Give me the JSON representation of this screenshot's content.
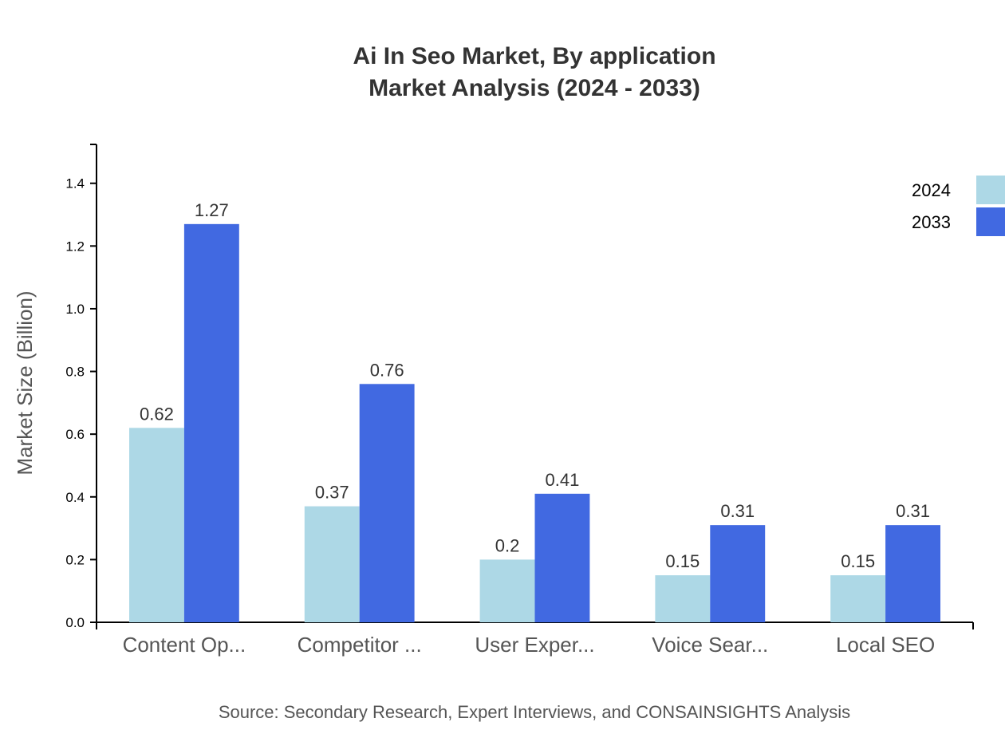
{
  "chart_data": {
    "type": "bar",
    "title": "Ai In Seo Market, By application",
    "subtitle": "Market Analysis (2024 - 2033)",
    "xlabel": "",
    "ylabel": "Market Size (Billion)",
    "ylim": [
      0,
      1.524
    ],
    "yticks": [
      "0.0",
      "0.2",
      "0.4",
      "0.6",
      "0.8",
      "1.0",
      "1.2",
      "1.4"
    ],
    "categories": [
      "Content Op...",
      "Competitor ...",
      "User Exper...",
      "Voice Sear...",
      "Local SEO"
    ],
    "series": [
      {
        "name": "2024",
        "color": "#add8e6",
        "values": [
          0.62,
          0.37,
          0.2,
          0.15,
          0.15
        ],
        "labels": [
          "0.62",
          "0.37",
          "0.2",
          "0.15",
          "0.15"
        ]
      },
      {
        "name": "2033",
        "color": "#4169e1",
        "values": [
          1.27,
          0.76,
          0.41,
          0.31,
          0.31
        ],
        "labels": [
          "1.27",
          "0.76",
          "0.41",
          "0.31",
          "0.31"
        ]
      }
    ],
    "legend": "top-right",
    "grid": false
  },
  "source": "Source: Secondary Research, Expert Interviews, and CONSAINSIGHTS Analysis"
}
